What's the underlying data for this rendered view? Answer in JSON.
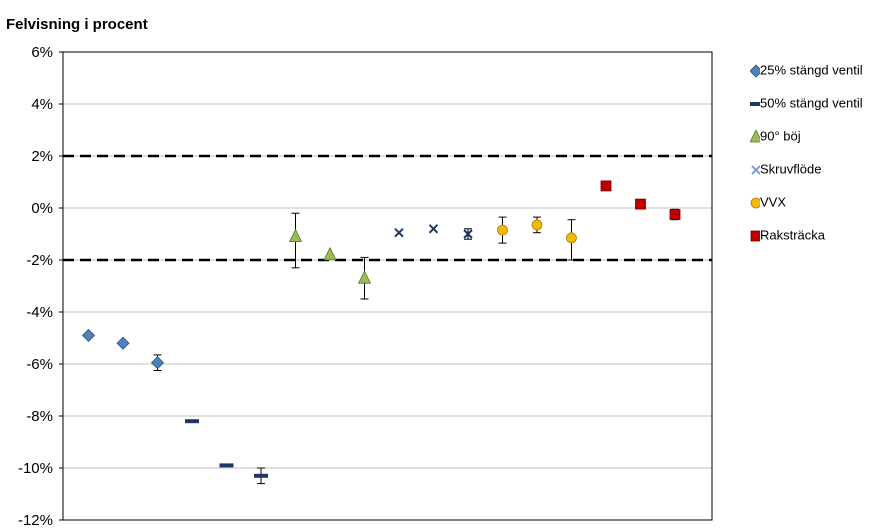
{
  "chart_data": {
    "type": "scatter",
    "title": "Felvisning i procent",
    "xlabel": "",
    "ylabel": "",
    "ylim": [
      -12,
      6
    ],
    "yticks": [
      "6%",
      "4%",
      "2%",
      "0%",
      "-2%",
      "-4%",
      "-6%",
      "-8%",
      "-10%",
      "-12%"
    ],
    "tick_values": [
      6,
      4,
      2,
      0,
      -2,
      -4,
      -6,
      -8,
      -10,
      -12
    ],
    "grid": true,
    "reference_lines": [
      2,
      -2
    ],
    "legend_position": "right",
    "series": [
      {
        "name": "25% stängd ventil",
        "marker": "diamond",
        "color": "#4f81bd",
        "points": [
          {
            "x": 1,
            "y": -4.9
          },
          {
            "x": 2,
            "y": -5.2
          },
          {
            "x": 3,
            "y": -5.95,
            "err": 0.3
          }
        ]
      },
      {
        "name": "50% stängd ventil",
        "marker": "dash",
        "color": "#1f3864",
        "points": [
          {
            "x": 4,
            "y": -8.2
          },
          {
            "x": 5,
            "y": -9.9
          },
          {
            "x": 6,
            "y": -10.3,
            "err": 0.3
          }
        ]
      },
      {
        "name": "90° böj",
        "marker": "triangle",
        "color": "#9bbb59",
        "points": [
          {
            "x": 7,
            "y": -1.1,
            "err_low": 1.2,
            "err_high": 0.9
          },
          {
            "x": 8,
            "y": -1.8
          },
          {
            "x": 9,
            "y": -2.7,
            "err": 0.8
          }
        ]
      },
      {
        "name": "Skruvflöde",
        "marker": "x",
        "color": "#1f3864",
        "points": [
          {
            "x": 10,
            "y": -0.95
          },
          {
            "x": 11,
            "y": -0.8
          },
          {
            "x": 12,
            "y": -1.0,
            "err": 0.2
          }
        ]
      },
      {
        "name": "VVX",
        "marker": "circle",
        "color": "#f5b800",
        "points": [
          {
            "x": 13,
            "y": -0.85,
            "err": 0.5
          },
          {
            "x": 14,
            "y": -0.65,
            "err": 0.3
          },
          {
            "x": 15,
            "y": -1.15,
            "err_low": 0.85,
            "err_high": 0.7
          }
        ]
      },
      {
        "name": "Raksträcka",
        "marker": "square",
        "color": "#c00000",
        "points": [
          {
            "x": 16,
            "y": 0.85
          },
          {
            "x": 17,
            "y": 0.15
          },
          {
            "x": 18,
            "y": -0.25,
            "err": 0.2
          }
        ]
      }
    ]
  },
  "legend": {
    "items": [
      {
        "label": "25% stängd ventil",
        "marker": "diamond",
        "color": "#4f81bd"
      },
      {
        "label": "50% stängd ventil",
        "marker": "dash",
        "color": "#1f3864"
      },
      {
        "label": "90° böj",
        "marker": "triangle",
        "color": "#9bbb59"
      },
      {
        "label": "Skruvflöde",
        "marker": "x",
        "color": "#7f9fcf"
      },
      {
        "label": "VVX",
        "marker": "circle",
        "color": "#f5b800"
      },
      {
        "label": "Raksträcka",
        "marker": "square",
        "color": "#c00000"
      }
    ]
  }
}
